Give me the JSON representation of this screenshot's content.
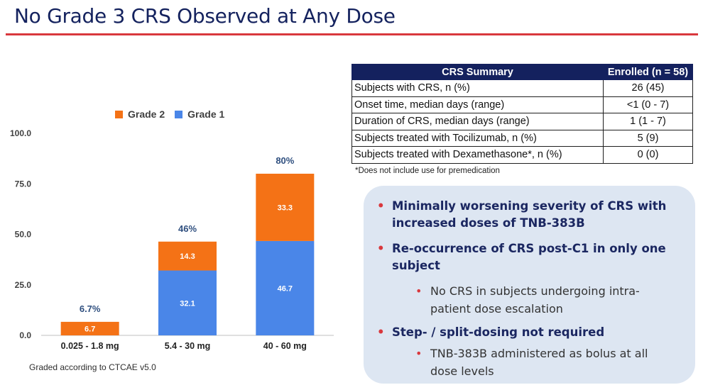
{
  "slide": {
    "title": "No Grade 3 CRS Observed at Any Dose"
  },
  "colors": {
    "grade2": "#f47216",
    "grade1": "#4a86e8",
    "title": "#14225e",
    "rule": "#d9383d",
    "table_header": "#14215e"
  },
  "chart_data": {
    "type": "bar",
    "stacked": true,
    "categories": [
      "0.025 - 1.8 mg",
      "5.4 - 30 mg",
      "40 - 60 mg"
    ],
    "series": [
      {
        "name": "Grade 1",
        "values": [
          0,
          32.1,
          46.7
        ],
        "labels": [
          "",
          "32.1",
          "46.7"
        ]
      },
      {
        "name": "Grade 2",
        "values": [
          6.7,
          14.3,
          33.3
        ],
        "labels": [
          "6.7",
          "14.3",
          "33.3"
        ]
      }
    ],
    "totals": [
      "6.7%",
      "46%",
      "80%"
    ],
    "legend": [
      "Grade 2",
      "Grade 1"
    ],
    "legend_position": "top",
    "yticks": [
      "0.0",
      "25.0",
      "50.0",
      "75.0",
      "100.0"
    ],
    "ylim": [
      0,
      100
    ],
    "grid": false
  },
  "chart_footnote": "Graded according to CTCAE v5.0",
  "table": {
    "headers": [
      "CRS Summary",
      "Enrolled (n = 58)"
    ],
    "rows": [
      [
        "Subjects with CRS, n (%)",
        "26 (45)"
      ],
      [
        "Onset time, median days (range)",
        "<1 (0 - 7)"
      ],
      [
        "Duration of CRS, median days (range)",
        "1 (1 - 7)"
      ],
      [
        "Subjects treated with Tocilizumab, n (%)",
        "5 (9)"
      ],
      [
        "Subjects treated with Dexamethasone*, n (%)",
        "0 (0)"
      ]
    ],
    "note": "*Does not include use for premedication"
  },
  "bullets": {
    "b1_line1": "Minimally worsening severity of CRS with",
    "b1_line2": "increased doses of TNB-383B",
    "b2_line1": "Re-occurrence of CRS post-C1 in only one",
    "b2_line2": "subject",
    "b2a_line1": "No CRS in subjects undergoing intra-",
    "b2a_line2": "patient dose escalation",
    "b3_line1": "Step- / split-dosing not required",
    "b3a_line1": "TNB-383B administered as bolus at all",
    "b3a_line2": "dose levels"
  }
}
